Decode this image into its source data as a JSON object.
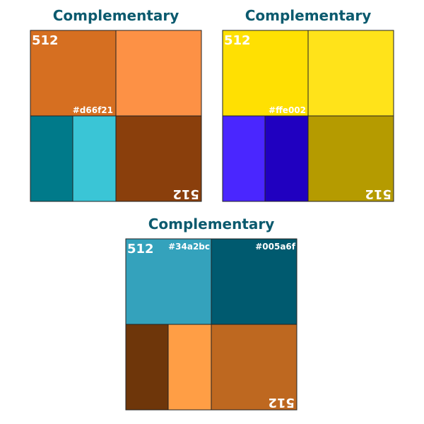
{
  "panels": [
    {
      "title": "Complementary",
      "label": "512",
      "label_rotated": "512",
      "hex_labels": [
        "#d66f21"
      ],
      "colors": {
        "top_left": "#d66f21",
        "top_right": "#fd9145",
        "bottom_left_a": "#007a8a",
        "bottom_left_b": "#3ac5d6",
        "bottom_right": "#8a3f0c"
      }
    },
    {
      "title": "Complementary",
      "label": "512",
      "label_rotated": "512",
      "hex_labels": [
        "#ffe002"
      ],
      "colors": {
        "top_left": "#ffe002",
        "top_right": "#ffe31a",
        "bottom_left_a": "#4a26ff",
        "bottom_left_b": "#2000c0",
        "bottom_right": "#b59b00"
      }
    },
    {
      "title": "Complementary",
      "label": "512",
      "label_rotated": "512",
      "hex_labels": [
        "#34a2bc",
        "#005a6f"
      ],
      "colors": {
        "top_left": "#34a2bc",
        "top_right": "#005a6f",
        "bottom_left_a": "#6e360a",
        "bottom_left_b": "#ff9e45",
        "bottom_right": "#be6820"
      }
    }
  ]
}
